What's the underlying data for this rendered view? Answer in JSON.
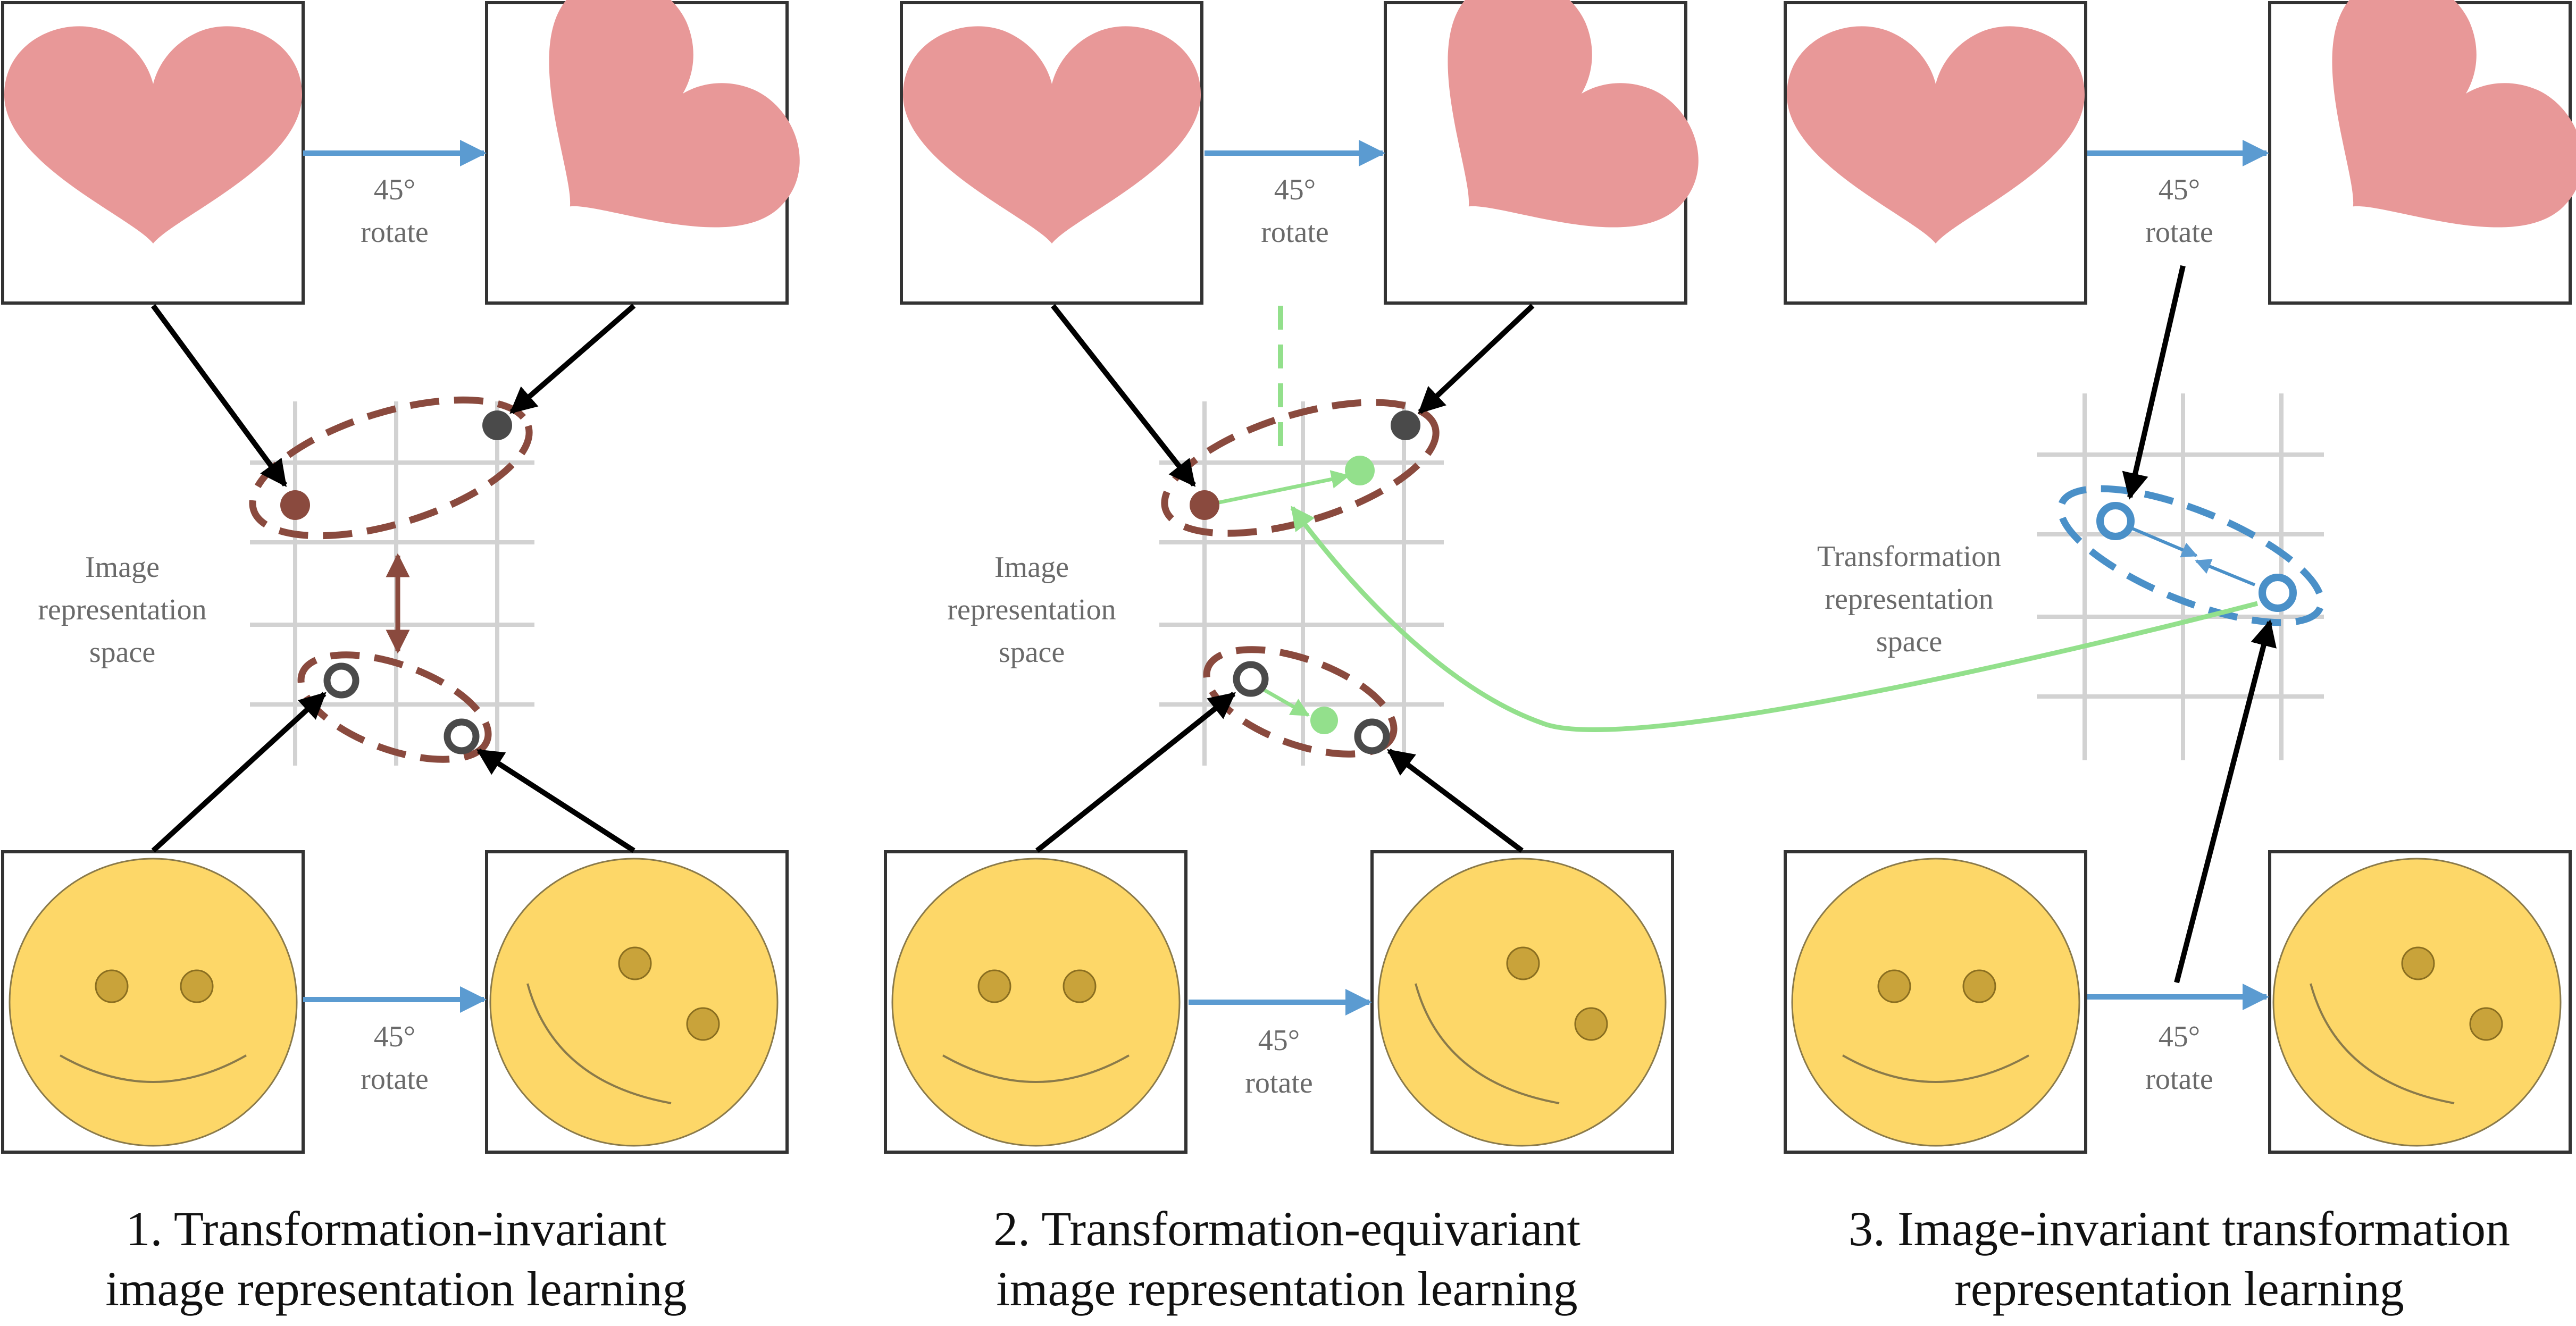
{
  "colors": {
    "heart": "#E89898",
    "smiley_face": "#FDD768",
    "smiley_eye": "#C9A33A",
    "transform_arrow": "#5B9BD1",
    "grid": "#D2D2D2",
    "invariant_group": "#8A4A3E",
    "equivariant_link": "#93E08C",
    "transformation_point": "#4A90C8",
    "dark_point": "#4A4A4A",
    "black_arrow": "#000000"
  },
  "panels": [
    {
      "transform_top": {
        "angle": "45°",
        "word": "rotate"
      },
      "transform_bottom": {
        "angle": "45°",
        "word": "rotate"
      },
      "space_label": [
        "Image",
        "representation",
        "space"
      ],
      "caption": [
        "1. Transformation-invariant",
        "image representation learning"
      ]
    },
    {
      "transform_top": {
        "angle": "45°",
        "word": "rotate"
      },
      "transform_bottom": {
        "angle": "45°",
        "word": "rotate"
      },
      "space_label": [
        "Image",
        "representation",
        "space"
      ],
      "caption": [
        "2. Transformation-equivariant",
        "image representation learning"
      ]
    },
    {
      "transform_top": {
        "angle": "45°",
        "word": "rotate"
      },
      "transform_bottom": {
        "angle": "45°",
        "word": "rotate"
      },
      "space_label": [
        "Transformation",
        "representation",
        "space"
      ],
      "caption": [
        "3. Image-invariant transformation",
        "representation learning"
      ]
    }
  ]
}
